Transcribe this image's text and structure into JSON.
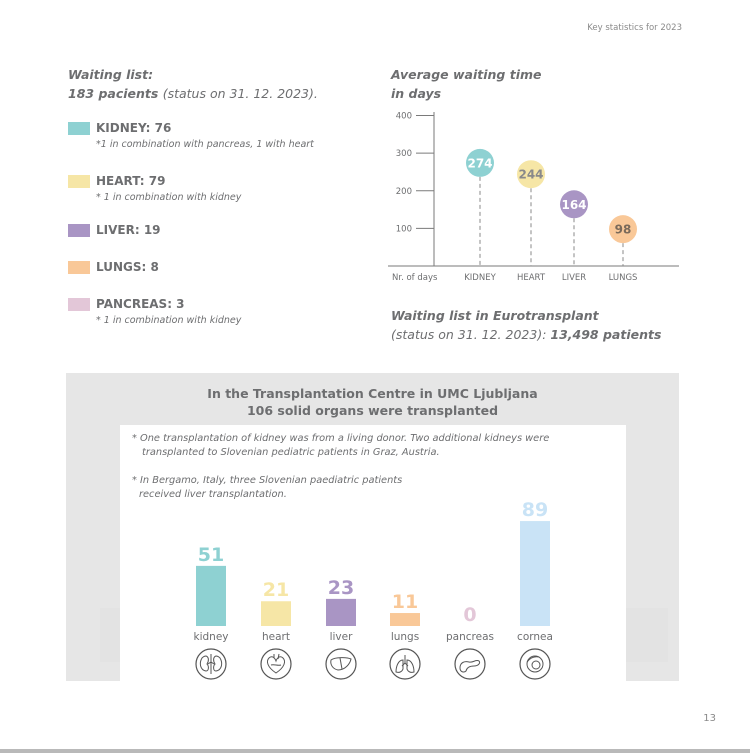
{
  "header_note": "Key statistics for 2023",
  "page_number": "13",
  "waiting_list": {
    "title": "Waiting list:",
    "count_label": "183 pacients",
    "status": "(status on 31. 12. 2023).",
    "items": [
      {
        "label": "KIDNEY: 76",
        "note": "*1 in combination with pancreas, 1 with heart",
        "color": "#8ed1d2"
      },
      {
        "label": "HEART: 79",
        "note": "* 1 in combination with kidney",
        "color": "#f6e6a6"
      },
      {
        "label": "LIVER: 19",
        "note": "",
        "color": "#a995c4"
      },
      {
        "label": "LUNGS: 8",
        "note": "",
        "color": "#f9c898"
      },
      {
        "label": "PANCREAS: 3",
        "note": "* 1 in combination with kidney",
        "color": "#e3c7d8"
      }
    ]
  },
  "avg_waiting": {
    "title_line1": "Average waiting time",
    "title_line2": "in days"
  },
  "eurotransplant": {
    "line1": "Waiting list in Eurotransplant",
    "line2_prefix": "(status on 31. 12. 2023): ",
    "line2_value": "13,498  patients"
  },
  "transplant": {
    "title_line1": "In the Transplantation Centre in UMC Ljubljana",
    "title_line2": "106 solid organs were transplanted",
    "note1_line1": "* One transplantation of kidney was from a living donor. Two additional kidneys were",
    "note1_line2": "transplanted to Slovenian pediatric patients in Graz, Austria.",
    "note2_line1": "* In Bergamo, Italy, three Slovenian paediatric patients",
    "note2_line2": "received liver transplantation."
  },
  "chart_data": [
    {
      "type": "scatter",
      "xlabel": "Nr. of days",
      "categories": [
        "KIDNEY",
        "HEART",
        "LIVER",
        "LUNGS"
      ],
      "values": [
        274,
        244,
        164,
        98
      ],
      "colors": [
        "#8ed1d2",
        "#f6e6a6",
        "#a995c4",
        "#f9c898"
      ],
      "yticks": [
        100,
        200,
        300,
        400
      ],
      "ylim": [
        0,
        420
      ],
      "grid": false
    },
    {
      "type": "bar",
      "categories": [
        "kidney",
        "heart",
        "liver",
        "lungs",
        "pancreas",
        "cornea"
      ],
      "values": [
        51,
        21,
        23,
        11,
        0,
        89
      ],
      "colors": [
        "#8ed1d2",
        "#f6e6a6",
        "#a995c4",
        "#f9c898",
        "#e3c7d8",
        "#c9e3f6"
      ],
      "icons": [
        "kidney-icon",
        "heart-icon",
        "liver-icon",
        "lungs-icon",
        "pancreas-icon",
        "eye-icon"
      ],
      "ylim": [
        0,
        95
      ],
      "grid": false
    }
  ]
}
